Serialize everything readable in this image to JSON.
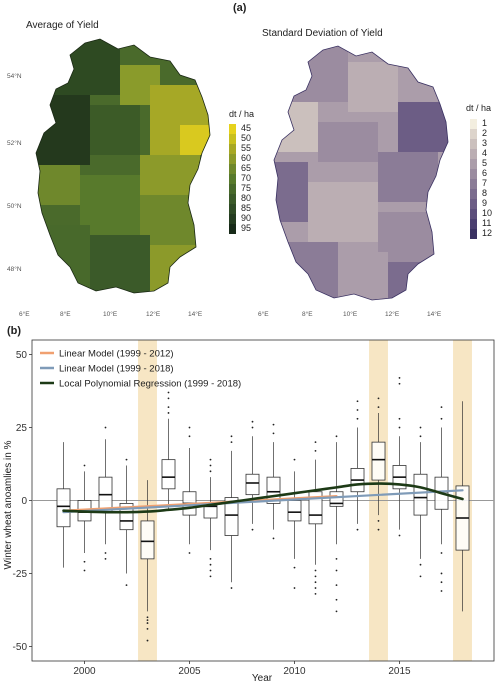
{
  "panel_a": {
    "label": "(a)",
    "maps": [
      {
        "title": "Average of Yield",
        "legend_title": "dt / ha",
        "legend_labels": [
          "45",
          "50",
          "55",
          "60",
          "65",
          "70",
          "75",
          "80",
          "85",
          "90",
          "95"
        ],
        "legend_colors": [
          "#e6d21d",
          "#c8c01f",
          "#a7a825",
          "#8c9a2a",
          "#6f882c",
          "#587a2c",
          "#48692b",
          "#3b5a29",
          "#2f4b25",
          "#243c20",
          "#172a18"
        ],
        "lat_ticks": [
          "54°N",
          "52°N",
          "50°N",
          "48°N"
        ],
        "lon_ticks": [
          "6°E",
          "8°E",
          "10°E",
          "12°E",
          "14°E"
        ]
      },
      {
        "title": "Standard Deviation of Yield",
        "legend_title": "dt / ha",
        "legend_labels": [
          "1",
          "2",
          "3",
          "4",
          "5",
          "6",
          "7",
          "8",
          "9",
          "10",
          "11",
          "12"
        ],
        "legend_colors": [
          "#f3eedf",
          "#ddd4cb",
          "#cbc0bd",
          "#bbaeb3",
          "#ab9daa",
          "#9b8ca0",
          "#8b7c97",
          "#7b6c8e",
          "#6c5d85",
          "#5c4e7b",
          "#4b3f70",
          "#3a3162"
        ],
        "lon_ticks": [
          "6°E",
          "8°E",
          "10°E",
          "12°E",
          "14°E"
        ]
      }
    ]
  },
  "chart_data": {
    "panel_label": "(b)",
    "type": "boxplot",
    "xlabel": "Year",
    "ylabel": "Winter wheat anoamlies in %",
    "ylim": [
      -55,
      55
    ],
    "xlim": [
      1997.5,
      2019.5
    ],
    "x_ticks": [
      2000,
      2005,
      2010,
      2015
    ],
    "y_ticks": [
      -50,
      -25,
      0,
      25,
      50
    ],
    "highlight_years": [
      2003,
      2014,
      2018
    ],
    "highlight_color": "#f7e6c4",
    "boxes": [
      {
        "year": 1999,
        "q1": -9,
        "median": -2,
        "q3": 4,
        "low": -23,
        "high": 20
      },
      {
        "year": 2000,
        "q1": -7,
        "median": -4,
        "q3": 0,
        "low": -18,
        "high": 10
      },
      {
        "year": 2001,
        "q1": -4,
        "median": 2,
        "q3": 8,
        "low": -15,
        "high": 21
      },
      {
        "year": 2002,
        "q1": -10,
        "median": -7,
        "q3": -1,
        "low": -25,
        "high": 12
      },
      {
        "year": 2003,
        "q1": -20,
        "median": -14,
        "q3": -7,
        "low": -38,
        "high": 7
      },
      {
        "year": 2004,
        "q1": 4,
        "median": 8,
        "q3": 14,
        "low": -3,
        "high": 28
      },
      {
        "year": 2005,
        "q1": -5,
        "median": -1,
        "q3": 3,
        "low": -15,
        "high": 18
      },
      {
        "year": 2006,
        "q1": -6,
        "median": -2,
        "q3": -1,
        "low": -17,
        "high": 8
      },
      {
        "year": 2007,
        "q1": -12,
        "median": -5,
        "q3": 1,
        "low": -28,
        "high": 17
      },
      {
        "year": 2008,
        "q1": 2,
        "median": 6,
        "q3": 9,
        "low": -8,
        "high": 22
      },
      {
        "year": 2009,
        "q1": -1,
        "median": 3,
        "q3": 8,
        "low": -10,
        "high": 20
      },
      {
        "year": 2010,
        "q1": -7,
        "median": -4,
        "q3": 0,
        "low": -20,
        "high": 10
      },
      {
        "year": 2011,
        "q1": -8,
        "median": -5,
        "q3": 3,
        "low": -22,
        "high": 14
      },
      {
        "year": 2012,
        "q1": -2,
        "median": -1,
        "q3": 3,
        "low": -15,
        "high": 20
      },
      {
        "year": 2013,
        "q1": 3,
        "median": 7,
        "q3": 11,
        "low": -8,
        "high": 25
      },
      {
        "year": 2014,
        "q1": 7,
        "median": 14,
        "q3": 20,
        "low": -5,
        "high": 30
      },
      {
        "year": 2015,
        "q1": 4,
        "median": 8,
        "q3": 12,
        "low": -10,
        "high": 22
      },
      {
        "year": 2016,
        "q1": -5,
        "median": 1,
        "q3": 9,
        "low": -20,
        "high": 20
      },
      {
        "year": 2017,
        "q1": -3,
        "median": 3,
        "q3": 8,
        "low": -15,
        "high": 25
      },
      {
        "year": 2018,
        "q1": -17,
        "median": -6,
        "q3": 5,
        "low": -38,
        "high": 34
      }
    ],
    "outliers": [
      {
        "year": 1999,
        "values": []
      },
      {
        "year": 2000,
        "values": [
          -21,
          -24,
          12
        ]
      },
      {
        "year": 2001,
        "values": [
          -18,
          -20,
          25
        ]
      },
      {
        "year": 2002,
        "values": [
          -29,
          14
        ]
      },
      {
        "year": 2003,
        "values": [
          -40,
          -41,
          -42,
          -44,
          -48
        ]
      },
      {
        "year": 2004,
        "values": [
          30,
          32,
          35,
          37
        ]
      },
      {
        "year": 2005,
        "values": [
          -18,
          22,
          25
        ]
      },
      {
        "year": 2006,
        "values": [
          -20,
          -22,
          -24,
          -26,
          10,
          12,
          14
        ]
      },
      {
        "year": 2007,
        "values": [
          -30,
          20,
          22
        ]
      },
      {
        "year": 2008,
        "values": [
          -10,
          25,
          27
        ]
      },
      {
        "year": 2009,
        "values": [
          -13,
          23,
          26
        ]
      },
      {
        "year": 2010,
        "values": [
          -23,
          -30,
          14
        ]
      },
      {
        "year": 2011,
        "values": [
          -24,
          -26,
          -28,
          -30,
          -32,
          17,
          20
        ]
      },
      {
        "year": 2012,
        "values": [
          -20,
          -24,
          -29,
          -34,
          -38,
          22
        ]
      },
      {
        "year": 2013,
        "values": [
          -10,
          28,
          31,
          34
        ]
      },
      {
        "year": 2014,
        "values": [
          -7,
          -10,
          32,
          35
        ]
      },
      {
        "year": 2015,
        "values": [
          -12,
          25,
          28,
          40,
          42
        ]
      },
      {
        "year": 2016,
        "values": [
          -22,
          -26,
          22,
          25
        ]
      },
      {
        "year": 2017,
        "values": [
          -18,
          -25,
          -28,
          -31,
          28,
          32
        ]
      },
      {
        "year": 2018,
        "values": []
      }
    ],
    "series": [
      {
        "name": "Linear Model (1999 - 2012)",
        "color": "#f0a070",
        "x": [
          1999,
          2012
        ],
        "y": [
          -3.5,
          1.5
        ]
      },
      {
        "name": "Linear Model (1999 - 2018)",
        "color": "#7f9bb8",
        "x": [
          1999,
          2018
        ],
        "y": [
          -4,
          3.5
        ]
      },
      {
        "name": "Local Polynomial Regression  (1999 - 2018)",
        "color": "#1d3a16",
        "x": [
          1999,
          2000,
          2001,
          2002,
          2003,
          2004,
          2005,
          2006,
          2007,
          2008,
          2009,
          2010,
          2011,
          2012,
          2013,
          2014,
          2015,
          2016,
          2017,
          2018
        ],
        "y": [
          -3.5,
          -3.8,
          -4,
          -4,
          -3.8,
          -3.2,
          -2.5,
          -1.5,
          -0.5,
          0.5,
          1.5,
          2.5,
          3.5,
          4.5,
          5.5,
          5.8,
          5.5,
          4.5,
          2.5,
          0.5
        ]
      }
    ],
    "legend_position": "top-left",
    "grid": false
  }
}
